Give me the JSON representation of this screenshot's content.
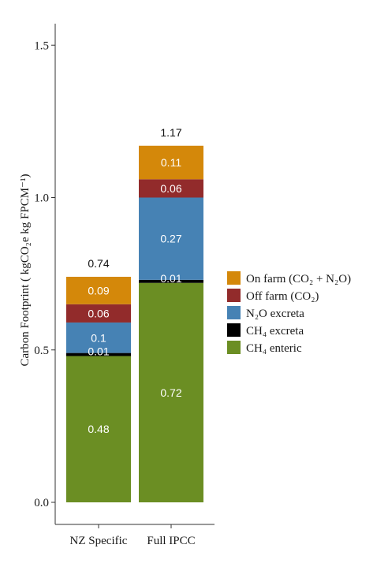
{
  "chart_data": {
    "type": "bar",
    "stacked": true,
    "categories": [
      "NZ Specific",
      "Full IPCC"
    ],
    "ylabel": "Carbon Footprint ( kgCO₂e kg FPCM⁻¹)",
    "ylim": [
      0,
      1.6
    ],
    "yticks": [
      "0.0",
      "0.5",
      "1.0",
      "1.5"
    ],
    "yticks_values": [
      0,
      0.5,
      1.0,
      1.5
    ],
    "grid": false,
    "legend_position": "right",
    "series": [
      {
        "name": "CH₄ enteric",
        "color": "#6b8e23",
        "values": [
          0.48,
          0.72
        ],
        "labels": [
          "0.48",
          "0.72"
        ]
      },
      {
        "name": "CH₄ excreta",
        "color": "#000000",
        "values": [
          0.01,
          0.01
        ],
        "labels": [
          "0.01",
          "0.01"
        ]
      },
      {
        "name": "N₂O excreta",
        "color": "#4682b4",
        "values": [
          0.1,
          0.27
        ],
        "labels": [
          "0.1",
          "0.27"
        ]
      },
      {
        "name": "Off farm (CO₂)",
        "color": "#922b2b",
        "values": [
          0.06,
          0.06
        ],
        "labels": [
          "0.06",
          "0.06"
        ]
      },
      {
        "name": "On farm (CO₂ + N₂O)",
        "color": "#d4880a",
        "values": [
          0.09,
          0.11
        ],
        "labels": [
          "0.09",
          "0.11"
        ]
      }
    ],
    "totals": [
      0.74,
      1.17
    ],
    "total_labels": [
      "0.74",
      "1.17"
    ]
  }
}
